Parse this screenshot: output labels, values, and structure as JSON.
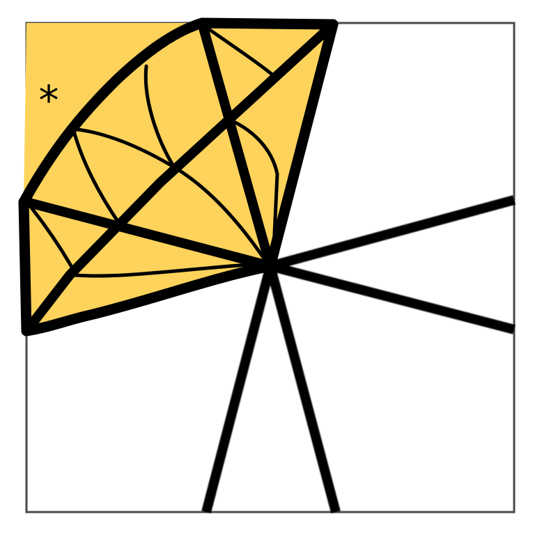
{
  "diagram": {
    "background_color": "#ffffff",
    "frame_color": "#4a4a4a",
    "fill_color": "#fdd35b",
    "stroke_color": "#000000",
    "marker_symbol": "*",
    "shape": "square-frame-with-radiating-lines-and-shaded-patterned-sector"
  }
}
